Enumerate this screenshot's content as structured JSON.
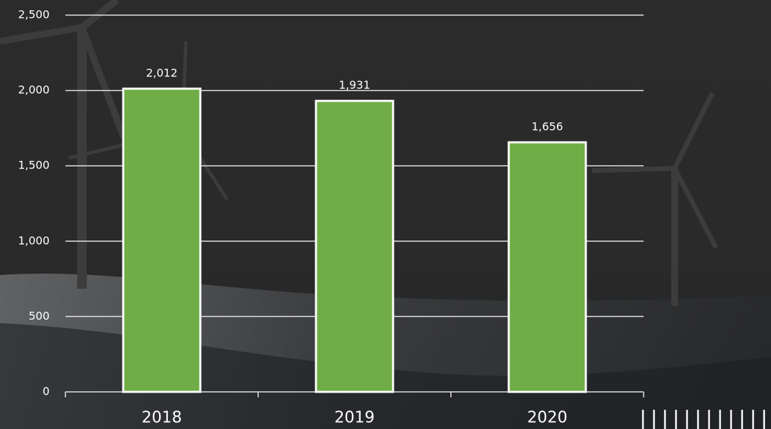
{
  "chart_data": {
    "type": "bar",
    "categories": [
      "2018",
      "2019",
      "2020"
    ],
    "values": [
      2012,
      1931,
      1656
    ],
    "value_labels": [
      "2,012",
      "1,931",
      "1,656"
    ],
    "color": "#70ad47",
    "ylim": [
      0,
      2500
    ],
    "yticks": [
      0,
      500,
      {
        "value": 1000,
        "label": "1,000"
      },
      {
        "value": 1500,
        "label": "1,500"
      },
      {
        "value": 2000,
        "label": "2,000"
      },
      {
        "value": 2500,
        "label": "2,500"
      }
    ],
    "grid": true
  }
}
